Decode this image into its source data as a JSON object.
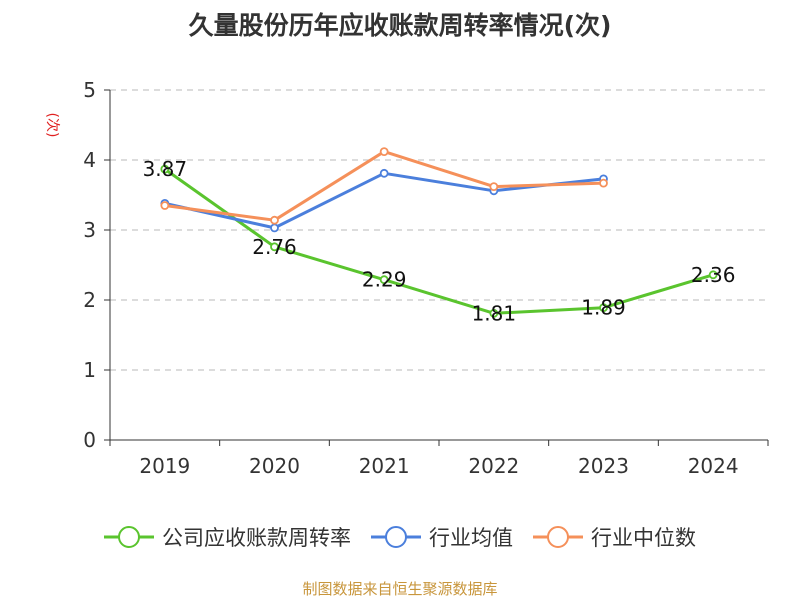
{
  "chart_data": {
    "type": "line",
    "title": "久量股份历年应收账款周转率情况(次)",
    "ylabel": "(次)",
    "categories": [
      "2019",
      "2020",
      "2021",
      "2022",
      "2023",
      "2024"
    ],
    "ylim": [
      0,
      5
    ],
    "yticks": [
      0,
      1,
      2,
      3,
      4,
      5
    ],
    "grid": true,
    "legend_position": "bottom",
    "series": [
      {
        "name": "公司应收账款周转率",
        "color": "#5ac42e",
        "values": [
          3.87,
          2.76,
          2.29,
          1.81,
          1.89,
          2.36
        ],
        "labels": [
          "3.87",
          "2.76",
          "2.29",
          "1.81",
          "1.89",
          "2.36"
        ]
      },
      {
        "name": "行业均值",
        "color": "#4b7fdc",
        "values": [
          3.38,
          3.03,
          3.81,
          3.56,
          3.73,
          null
        ]
      },
      {
        "name": "行业中位数",
        "color": "#f5905a",
        "values": [
          3.35,
          3.14,
          4.12,
          3.62,
          3.67,
          null
        ]
      }
    ]
  },
  "source": "制图数据来自恒生聚源数据库"
}
